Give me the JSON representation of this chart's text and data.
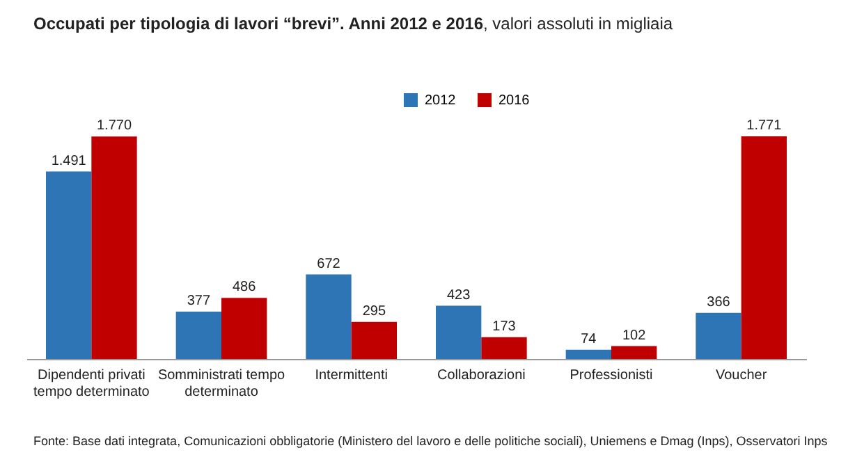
{
  "chart_data": {
    "type": "bar",
    "title": "Occupati per tipologia di lavori “brevi”. Anni 2012 e 2016",
    "subtitle": ", valori assoluti in migliaia",
    "categories": [
      "Dipendenti privati tempo determinato",
      "Somministrati tempo determinato",
      "Intermittenti",
      "Collaborazioni",
      "Professionisti",
      "Voucher"
    ],
    "series": [
      {
        "name": "2012",
        "color": "#2e75b6",
        "values": [
          1491,
          377,
          672,
          423,
          74,
          366
        ],
        "value_labels": [
          "1.491",
          "377",
          "672",
          "423",
          "74",
          "366"
        ]
      },
      {
        "name": "2016",
        "color": "#c00000",
        "values": [
          1770,
          486,
          295,
          173,
          102,
          1771
        ],
        "value_labels": [
          "1.770",
          "486",
          "295",
          "173",
          "102",
          "1.771"
        ]
      }
    ],
    "legend": "top",
    "grid": false,
    "annotations": [
      "Fonte: Base dati integrata, Comunicazioni obbligatorie (Ministero del lavoro e delle politiche sociali), Uniemens e  Dmag (Inps), Osservatori Inps"
    ]
  }
}
